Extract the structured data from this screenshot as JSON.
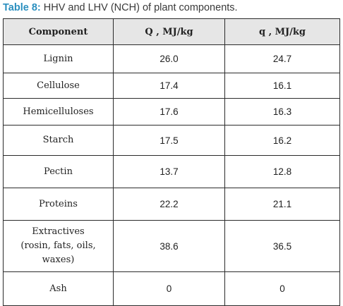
{
  "caption": {
    "label": "Table 8:",
    "text": " HHV and LHV (NCH) of plant components."
  },
  "table": {
    "headers": [
      "Component",
      "Q , MJ/kg",
      "q , MJ/kg"
    ],
    "rows": [
      {
        "component": "Lignin",
        "Q": "26.0",
        "q": "24.7"
      },
      {
        "component": "Cellulose",
        "Q": "17.4",
        "q": "16.1"
      },
      {
        "component": "Hemicelluloses",
        "Q": "17.6",
        "q": "16.3"
      },
      {
        "component": "Starch",
        "Q": "17.5",
        "q": "16.2"
      },
      {
        "component": "Pectin",
        "Q": "13.7",
        "q": "12.8"
      },
      {
        "component": "Proteins",
        "Q": "22.2",
        "q": "21.1"
      },
      {
        "component_lines": [
          "Extractives",
          "(rosin, fats, oils,",
          "waxes)"
        ],
        "Q": "38.6",
        "q": "36.5"
      },
      {
        "component": "Ash",
        "Q": "0",
        "q": "0"
      }
    ]
  }
}
